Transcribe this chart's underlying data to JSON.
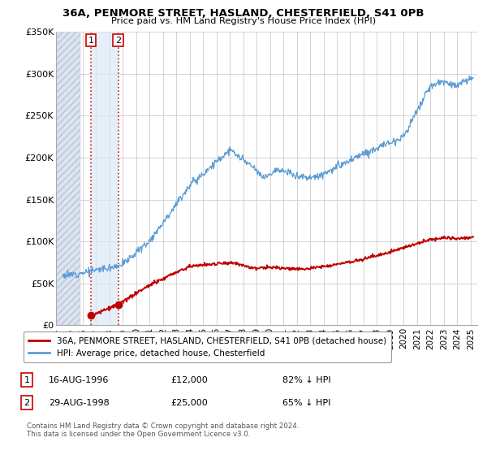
{
  "title": "36A, PENMORE STREET, HASLAND, CHESTERFIELD, S41 0PB",
  "subtitle": "Price paid vs. HM Land Registry's House Price Index (HPI)",
  "legend_line1": "36A, PENMORE STREET, HASLAND, CHESTERFIELD, S41 0PB (detached house)",
  "legend_line2": "HPI: Average price, detached house, Chesterfield",
  "footer": "Contains HM Land Registry data © Crown copyright and database right 2024.\nThis data is licensed under the Open Government Licence v3.0.",
  "transaction1_label": "1",
  "transaction1_date": "16-AUG-1996",
  "transaction1_price": "£12,000",
  "transaction1_pct": "82% ↓ HPI",
  "transaction1_year": 1996.62,
  "transaction1_value": 12000,
  "transaction2_label": "2",
  "transaction2_date": "29-AUG-1998",
  "transaction2_price": "£25,000",
  "transaction2_pct": "65% ↓ HPI",
  "transaction2_year": 1998.66,
  "transaction2_value": 25000,
  "hpi_color": "#5b9bd5",
  "price_color": "#c00000",
  "marker_color": "#c00000",
  "ylim": [
    0,
    350000
  ],
  "xlim_start": 1994.0,
  "xlim_end": 2025.5,
  "hatch_end": 1995.8,
  "shade_between_x1": 1996.62,
  "shade_between_x2": 1998.66,
  "yticks": [
    0,
    50000,
    100000,
    150000,
    200000,
    250000,
    300000,
    350000
  ],
  "ytick_labels": [
    "£0",
    "£50K",
    "£100K",
    "£150K",
    "£200K",
    "£250K",
    "£300K",
    "£350K"
  ],
  "xticks": [
    1994,
    1995,
    1996,
    1997,
    1998,
    1999,
    2000,
    2001,
    2002,
    2003,
    2004,
    2005,
    2006,
    2007,
    2008,
    2009,
    2010,
    2011,
    2012,
    2013,
    2014,
    2015,
    2016,
    2017,
    2018,
    2019,
    2020,
    2021,
    2022,
    2023,
    2024,
    2025
  ]
}
